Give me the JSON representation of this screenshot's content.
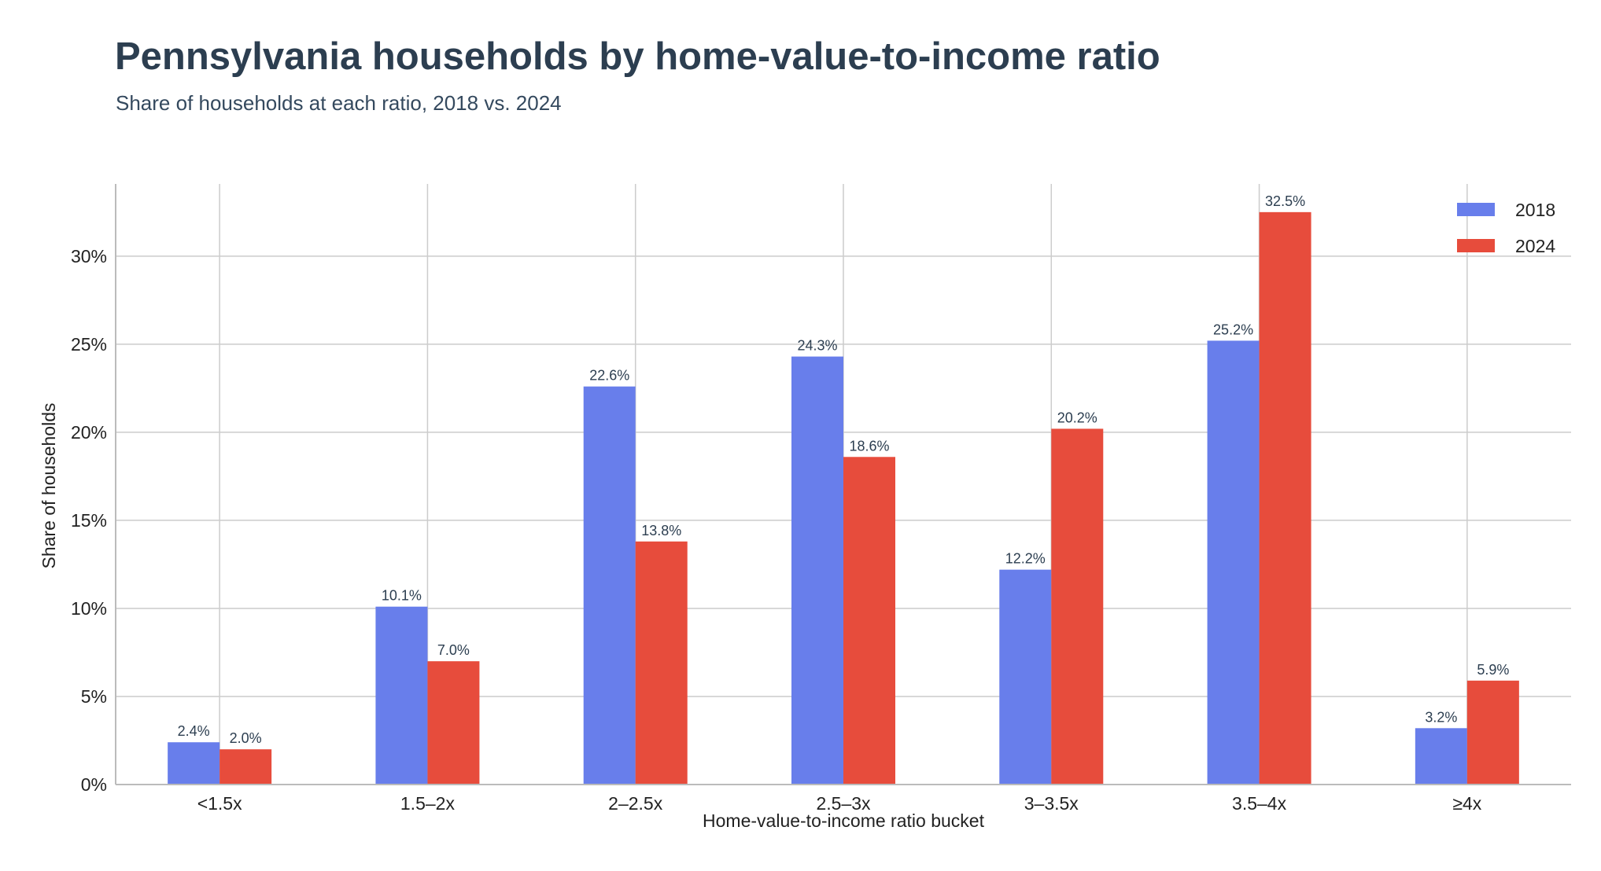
{
  "chart_data": {
    "type": "bar",
    "title": "Pennsylvania households by home-value-to-income ratio",
    "subtitle": "Share of households at each ratio, 2018 vs. 2024",
    "xlabel": "Home-value-to-income ratio bucket",
    "ylabel": "Share of households",
    "categories": [
      "<1.5x",
      "1.5–2x",
      "2–2.5x",
      "2.5–3x",
      "3–3.5x",
      "3.5–4x",
      "≥4x"
    ],
    "series": [
      {
        "name": "2018",
        "color": "#687eeb",
        "values": [
          2.4,
          10.1,
          22.6,
          24.3,
          12.2,
          25.2,
          3.2
        ],
        "labels": [
          "2.4%",
          "10.1%",
          "22.6%",
          "24.3%",
          "12.2%",
          "25.2%",
          "3.2%"
        ]
      },
      {
        "name": "2024",
        "color": "#e74c3c",
        "values": [
          2.0,
          7.0,
          13.8,
          18.6,
          20.2,
          32.5,
          5.9
        ],
        "labels": [
          "2.0%",
          "7.0%",
          "13.8%",
          "18.6%",
          "20.2%",
          "32.5%",
          "5.9%"
        ]
      }
    ],
    "ylim": [
      0,
      34.1
    ],
    "yticks": [
      0,
      5,
      10,
      15,
      20,
      25,
      30
    ],
    "ytick_labels": [
      "0%",
      "5%",
      "10%",
      "15%",
      "20%",
      "25%",
      "30%"
    ],
    "grid": true,
    "legend": "top-right"
  }
}
